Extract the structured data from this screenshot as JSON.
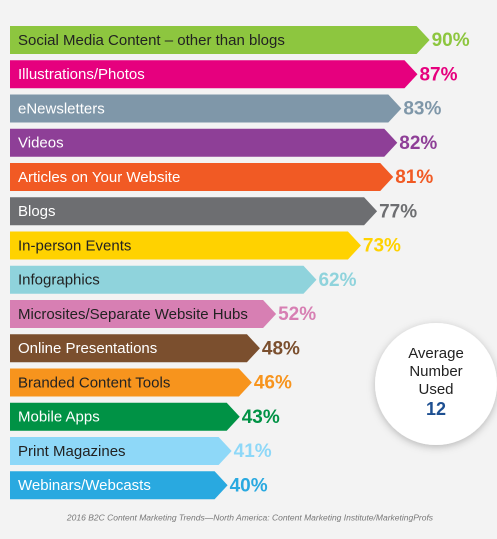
{
  "chart_data": {
    "type": "arrow-bar",
    "categories": [
      "Social Media Content – other than blogs",
      "Illustrations/Photos",
      "eNewsletters",
      "Videos",
      "Articles on Your Website",
      "Blogs",
      "In-person Events",
      "Infographics",
      "Microsites/Separate Website Hubs",
      "Online Presentations",
      "Branded Content Tools",
      "Mobile Apps",
      "Print Magazines",
      "Webinars/Webcasts"
    ],
    "values": [
      90,
      87,
      83,
      82,
      81,
      77,
      73,
      62,
      52,
      48,
      46,
      43,
      41,
      40
    ],
    "value_labels": [
      "90%",
      "87%",
      "83%",
      "82%",
      "81%",
      "77%",
      "73%",
      "62%",
      "52%",
      "48%",
      "46%",
      "43%",
      "41%",
      "40%"
    ],
    "colors": [
      "#8dc63f",
      "#e6007e",
      "#7f97a9",
      "#8e3f97",
      "#f15a24",
      "#6d6e71",
      "#ffd200",
      "#8fd3dc",
      "#d77fb3",
      "#7b4f2e",
      "#f7941d",
      "#009245",
      "#8ed8f8",
      "#29a9e0"
    ],
    "annotation": {
      "lines": [
        "Average",
        "Number",
        "Used"
      ],
      "value": 12
    },
    "source": "2016 B2C Content Marketing Trends—North America: Content Marketing Institute/MarketingProfs"
  }
}
